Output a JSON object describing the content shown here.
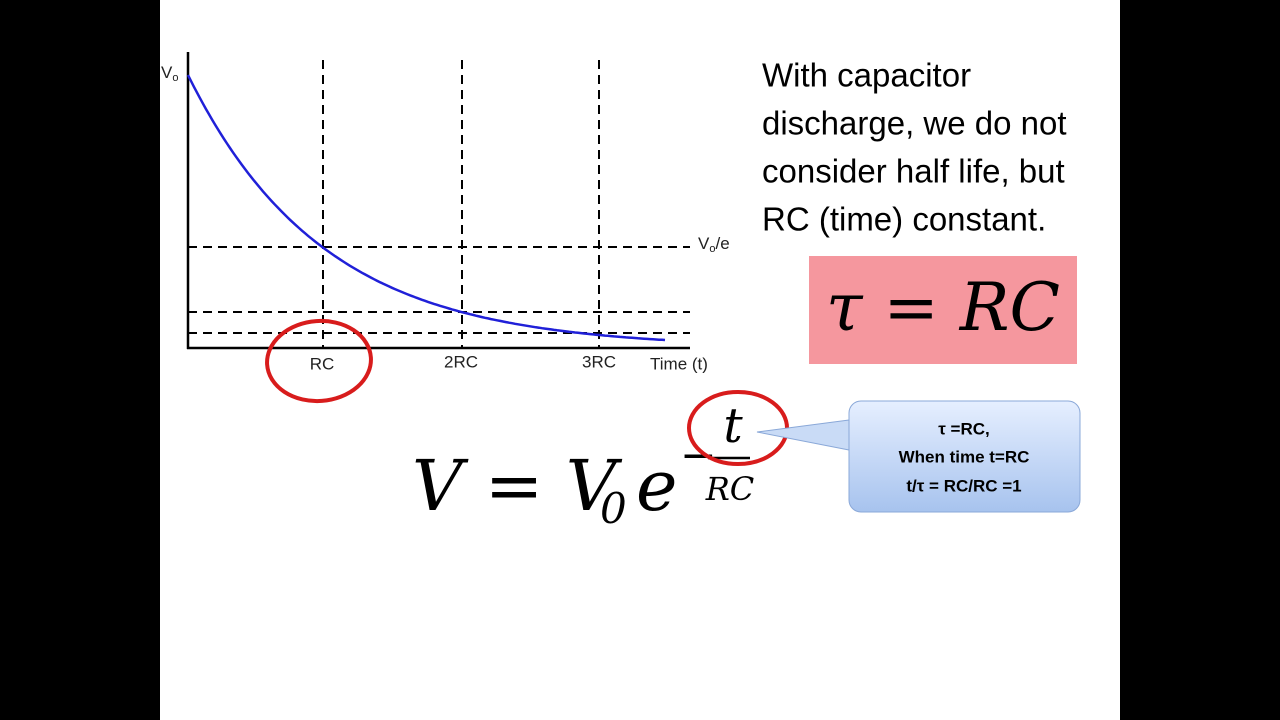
{
  "graph": {
    "y_top_label": {
      "main": "V",
      "sub": "o"
    },
    "level_label": {
      "main": "V",
      "sub": "o",
      "rest": "/e"
    },
    "x_labels": [
      "RC",
      "2RC",
      "3RC"
    ],
    "x_axis_title": "Time (t)"
  },
  "text_lines": [
    "With capacitor",
    "discharge, we do not",
    "consider half life, but",
    "RC (time) constant."
  ],
  "tau_box": "τ = RC",
  "equation": {
    "lhs": "V = V",
    "sub": "0",
    "base": "e",
    "minus": "−",
    "numerator": "t",
    "denominator": "RC"
  },
  "callout": [
    "τ =RC,",
    "When time t=RC",
    "t/τ = RC/RC =1"
  ]
}
